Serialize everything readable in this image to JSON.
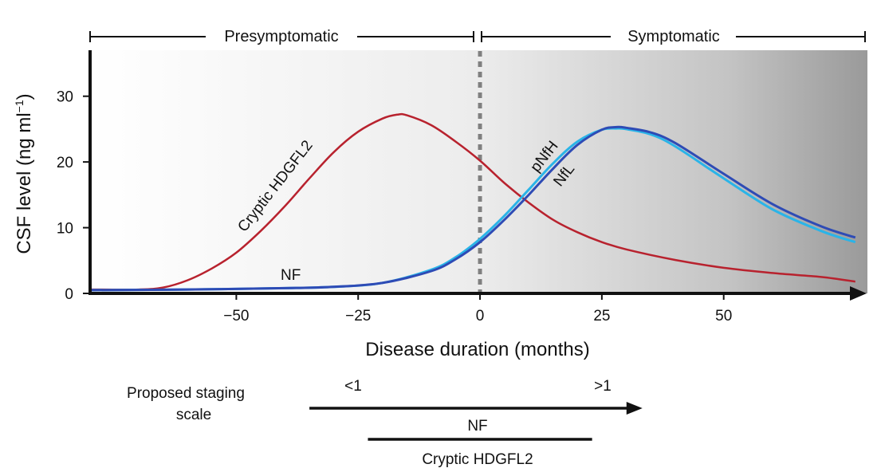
{
  "chart_data": {
    "type": "line",
    "xlabel": "Disease duration (months)",
    "ylabel_main": "CSF level (ng ml",
    "ylabel_sup": "−1",
    "ylabel_close": ")",
    "xlim": [
      -80,
      79
    ],
    "ylim": [
      0,
      37
    ],
    "x_ticks": [
      -50,
      -25,
      0,
      25,
      50
    ],
    "x_tick_labels": [
      "−50",
      "−25",
      "0",
      "25",
      "50"
    ],
    "y_ticks": [
      0,
      10,
      20,
      30
    ],
    "y_tick_labels": [
      "0",
      "10",
      "20",
      "30"
    ],
    "onset_x": 0,
    "background": "gradient white to grey, darkening with disease duration",
    "phases": [
      {
        "label": "Presymptomatic",
        "from": -80,
        "to": -0.5
      },
      {
        "label": "Symptomatic",
        "from": 0.5,
        "to": 79
      }
    ],
    "series": [
      {
        "name": "Cryptic HDGFL2",
        "color": "#b8222e",
        "x": [
          -80,
          -70,
          -65,
          -60,
          -55,
          -50,
          -45,
          -40,
          -35,
          -30,
          -25,
          -20,
          -17,
          -15,
          -10,
          -5,
          0,
          5,
          10,
          15,
          20,
          25,
          30,
          40,
          50,
          60,
          70,
          77
        ],
        "y": [
          0.6,
          0.6,
          0.9,
          2.0,
          3.8,
          6.2,
          9.5,
          13.3,
          17.5,
          21.5,
          24.6,
          26.6,
          27.2,
          27.1,
          25.6,
          23.1,
          20.2,
          16.8,
          13.8,
          11.2,
          9.3,
          7.8,
          6.7,
          5.1,
          3.9,
          3.1,
          2.5,
          1.8
        ]
      },
      {
        "name": "pNfH",
        "color": "#2ab4e8",
        "x": [
          -80,
          -60,
          -40,
          -30,
          -20,
          -10,
          -5,
          0,
          5,
          10,
          15,
          20,
          25,
          28,
          30,
          35,
          40,
          50,
          60,
          70,
          77
        ],
        "y": [
          0.5,
          0.6,
          0.8,
          1.0,
          1.6,
          3.6,
          5.5,
          8.3,
          11.8,
          15.8,
          19.8,
          23.1,
          24.9,
          25.1,
          25.0,
          24.2,
          22.4,
          17.5,
          12.8,
          9.5,
          7.8
        ]
      },
      {
        "name": "NfL",
        "color": "#2e4bb5",
        "x": [
          -80,
          -60,
          -40,
          -30,
          -20,
          -10,
          -5,
          0,
          5,
          10,
          15,
          20,
          25,
          28,
          30,
          35,
          40,
          50,
          60,
          70,
          77
        ],
        "y": [
          0.5,
          0.6,
          0.8,
          1.0,
          1.6,
          3.4,
          5.2,
          7.8,
          11.2,
          15.0,
          19.0,
          22.6,
          24.9,
          25.3,
          25.2,
          24.5,
          22.9,
          18.2,
          13.6,
          10.2,
          8.5
        ]
      }
    ],
    "annotations": [
      "NF"
    ]
  },
  "staging": {
    "title_line1": "Proposed staging",
    "title_line2": "scale",
    "low": "<1",
    "high": ">1",
    "bars": [
      {
        "label": "NF",
        "from": -35,
        "to": 33
      },
      {
        "label": "Cryptic HDGFL2",
        "from": -23,
        "to": 23
      }
    ]
  }
}
